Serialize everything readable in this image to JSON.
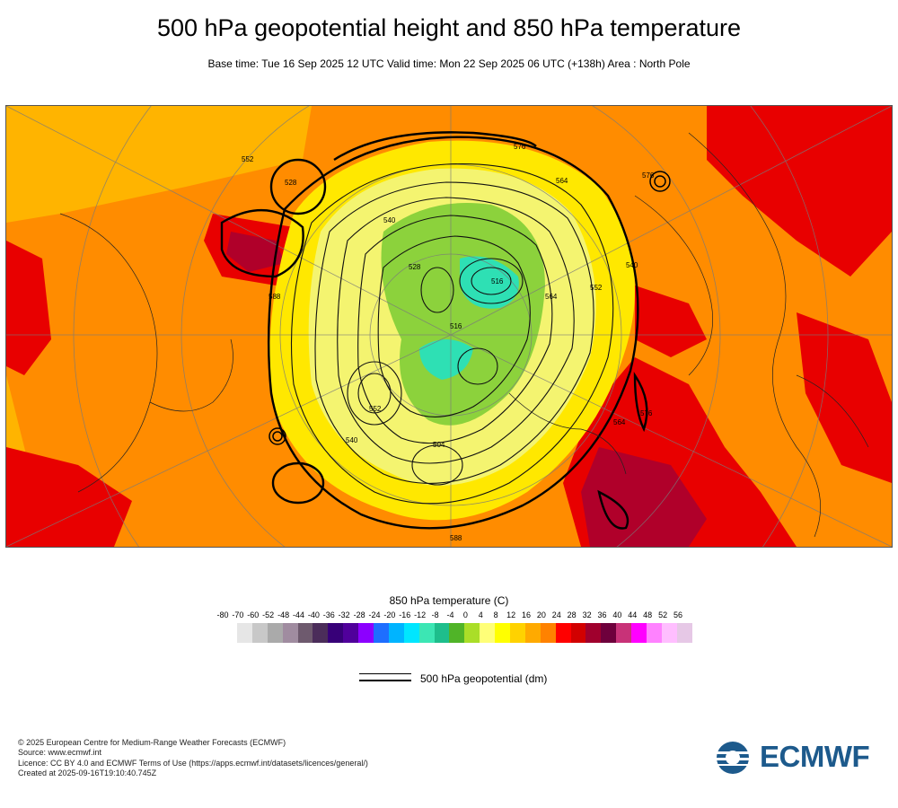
{
  "header": {
    "title": "500 hPa geopotential height and 850 hPa temperature",
    "subtitle": "Base time: Tue 16 Sep 2025 12 UTC Valid time: Mon 22 Sep 2025 06 UTC (+138h) Area : North Pole"
  },
  "map": {
    "area": "North Pole",
    "contour_labels": [
      "552",
      "528",
      "576",
      "564",
      "576",
      "540",
      "528",
      "516",
      "552",
      "564",
      "540",
      "588",
      "552",
      "516",
      "504",
      "540",
      "564",
      "576",
      "588"
    ],
    "colors": {
      "warm": "#ff8c00",
      "hot": "#e80000",
      "very_hot": "#b0002a",
      "mild": "#ffb400",
      "cool": "#ffe800",
      "pale": "#f4f470",
      "green": "#8cd23c",
      "teal": "#2ee0b4"
    }
  },
  "legend": {
    "temperature_title": "850 hPa temperature (C)",
    "ticks": [
      "-80",
      "-70",
      "-60",
      "-52",
      "-48",
      "-44",
      "-40",
      "-36",
      "-32",
      "-28",
      "-24",
      "-20",
      "-16",
      "-12",
      "-8",
      "-4",
      "0",
      "4",
      "8",
      "12",
      "16",
      "20",
      "24",
      "28",
      "32",
      "36",
      "40",
      "44",
      "48",
      "52",
      "56"
    ],
    "colors": [
      "#e6e6e6",
      "#c8c8c8",
      "#aaaaaa",
      "#a08ca0",
      "#6e5a6e",
      "#4b2d5a",
      "#370078",
      "#50009b",
      "#8c00ff",
      "#1e6eff",
      "#00b4ff",
      "#00e6ff",
      "#3ce6b4",
      "#1ebe8c",
      "#50b428",
      "#aade28",
      "#ffff78",
      "#ffff00",
      "#ffd200",
      "#ffaa00",
      "#ff8200",
      "#ff0000",
      "#d20000",
      "#a0002d",
      "#6e003c",
      "#c83278",
      "#ff00ff",
      "#ff82ff",
      "#ffbeff",
      "#e6c8e6",
      "#e6e6e6"
    ],
    "geopotential_label": "500 hPa geopotential (dm)"
  },
  "footer": {
    "lines": [
      "© 2025 European Centre for Medium-Range Weather Forecasts (ECMWF)",
      "Source: www.ecmwf.int",
      "Licence: CC BY 4.0 and ECMWF Terms of Use (https://apps.ecmwf.int/datasets/licences/general/)",
      "Created at 2025-09-16T19:10:40.745Z"
    ],
    "logo_text": "ECMWF",
    "logo_color": "#1d5a8c"
  }
}
